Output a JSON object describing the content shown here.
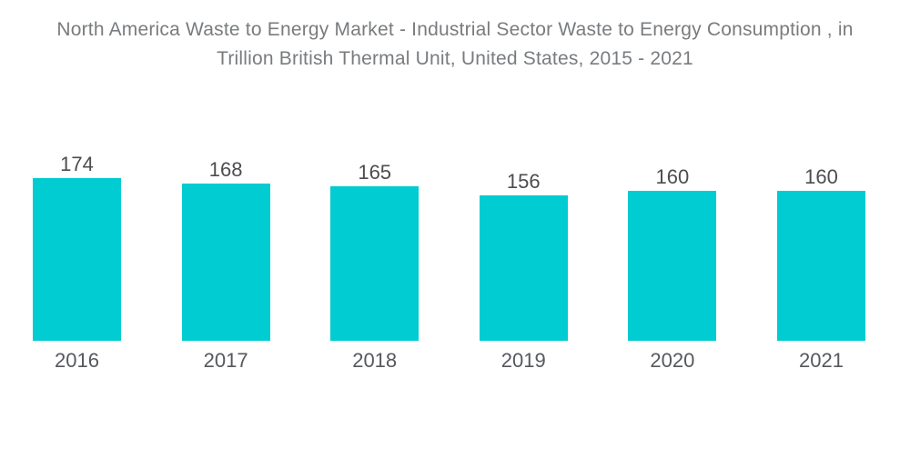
{
  "page": {
    "background": "#ffffff"
  },
  "chart_data": {
    "type": "bar",
    "title": "North America Waste to Energy Market - Industrial Sector Waste to Energy Consumption , in Trillion British Thermal Unit, United States, 2015 - 2021",
    "title_lines": [
      "North America Waste to Energy Market - Industrial Sector Waste to Energy Consumption , in",
      "Trillion British Thermal Unit, United States, 2015 - 2021"
    ],
    "categories": [
      "2016",
      "2017",
      "2018",
      "2019",
      "2020",
      "2021"
    ],
    "values": [
      174,
      168,
      165,
      156,
      160,
      160
    ],
    "xlabel": "",
    "ylabel": "",
    "ylim": [
      0,
      180
    ],
    "grid": false,
    "legend": false,
    "value_labels_shown": true,
    "colors": {
      "bar": "#00CCD1",
      "title_text": "#797c7f",
      "value_label_text": "#4c4d50",
      "axis_label_text": "#56585c"
    }
  }
}
